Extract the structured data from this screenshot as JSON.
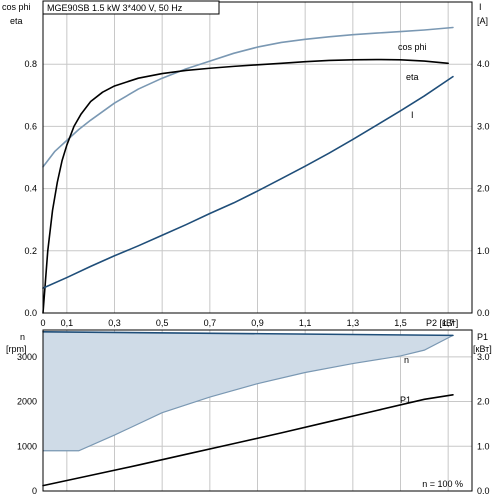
{
  "header": {
    "title": "MGE90SB   1.5 kW   3*400 V, 50 Hz"
  },
  "chart_data": [
    {
      "type": "line",
      "panel": "upper",
      "left_axis_labels": [
        "cos phi",
        "eta"
      ],
      "right_axis_labels": [
        "I",
        "[A]"
      ],
      "xlabel": "P2 [кВт]",
      "xlim": [
        0,
        1.8
      ],
      "ylim_left": [
        0,
        1.0
      ],
      "ylim_right": [
        0,
        5.0
      ],
      "x_ticks": [
        "0",
        "0,1",
        "0,3",
        "0,5",
        "0,7",
        "0,9",
        "1,1",
        "1,3",
        "1,5",
        "1,7"
      ],
      "x_tick_values": [
        0,
        0.1,
        0.3,
        0.5,
        0.7,
        0.9,
        1.1,
        1.3,
        1.5,
        1.7
      ],
      "y_left_ticks": [
        "0.0",
        "0.2",
        "0.4",
        "0.6",
        "0.8"
      ],
      "y_left_tick_values": [
        0,
        0.2,
        0.4,
        0.6,
        0.8
      ],
      "y_right_ticks": [
        "0.0",
        "1.0",
        "2.0",
        "3.0",
        "4.0"
      ],
      "y_right_tick_values": [
        0,
        1,
        2,
        3,
        4
      ],
      "grid": true,
      "series": [
        {
          "name": "cos phi",
          "axis": "left",
          "color": "#7a98b3",
          "x": [
            0,
            0.05,
            0.1,
            0.15,
            0.2,
            0.3,
            0.4,
            0.5,
            0.6,
            0.7,
            0.8,
            0.9,
            1.0,
            1.1,
            1.2,
            1.3,
            1.4,
            1.5,
            1.6,
            1.72
          ],
          "y": [
            0.47,
            0.52,
            0.555,
            0.59,
            0.62,
            0.675,
            0.72,
            0.755,
            0.785,
            0.81,
            0.835,
            0.855,
            0.87,
            0.88,
            0.888,
            0.895,
            0.9,
            0.905,
            0.91,
            0.918
          ]
        },
        {
          "name": "eta",
          "axis": "left",
          "color": "#000000",
          "x": [
            0,
            0.01,
            0.02,
            0.04,
            0.06,
            0.08,
            0.1,
            0.13,
            0.16,
            0.2,
            0.25,
            0.3,
            0.4,
            0.5,
            0.6,
            0.7,
            0.8,
            0.9,
            1.0,
            1.1,
            1.2,
            1.3,
            1.4,
            1.5,
            1.6,
            1.7
          ],
          "y": [
            0.0,
            0.1,
            0.2,
            0.33,
            0.42,
            0.49,
            0.54,
            0.6,
            0.64,
            0.68,
            0.71,
            0.73,
            0.755,
            0.77,
            0.78,
            0.787,
            0.793,
            0.798,
            0.803,
            0.808,
            0.812,
            0.814,
            0.815,
            0.814,
            0.81,
            0.803
          ]
        },
        {
          "name": "I",
          "axis": "right",
          "color": "#1f4e79",
          "x": [
            0,
            0.1,
            0.2,
            0.3,
            0.4,
            0.5,
            0.6,
            0.7,
            0.8,
            0.9,
            1.0,
            1.1,
            1.2,
            1.3,
            1.4,
            1.5,
            1.6,
            1.72
          ],
          "y": [
            0.4,
            0.57,
            0.75,
            0.92,
            1.08,
            1.25,
            1.42,
            1.6,
            1.77,
            1.96,
            2.16,
            2.36,
            2.57,
            2.79,
            3.02,
            3.25,
            3.49,
            3.8
          ]
        }
      ]
    },
    {
      "type": "area",
      "panel": "lower",
      "left_axis_labels": [
        "n",
        "[rpm]"
      ],
      "right_axis_labels": [
        "P1",
        "[кВт]"
      ],
      "xlim": [
        0,
        1.8
      ],
      "ylim_left": [
        0,
        3600
      ],
      "ylim_right": [
        0,
        3.6
      ],
      "y_left_ticks": [
        "0",
        "1000",
        "2000",
        "3000"
      ],
      "y_left_tick_values": [
        0,
        1000,
        2000,
        3000
      ],
      "y_right_ticks": [
        "0.0",
        "1.0",
        "2.0",
        "3.0"
      ],
      "y_right_tick_values": [
        0,
        1,
        2,
        3
      ],
      "grid": true,
      "annotation": "n = 100 %",
      "fill_color": "#cfdbe7",
      "fill_edge_color": "#7a98b3",
      "n_max": {
        "x": [
          0,
          1.72
        ],
        "y": [
          3560,
          3480
        ]
      },
      "n_min": {
        "x": [
          0,
          0.15,
          0.3,
          0.5,
          0.7,
          0.9,
          1.1,
          1.3,
          1.5,
          1.6,
          1.72
        ],
        "y": [
          900,
          900,
          1250,
          1750,
          2100,
          2400,
          2650,
          2850,
          3020,
          3150,
          3480
        ]
      },
      "series": [
        {
          "name": "n",
          "axis": "left",
          "color": "#1f4e79",
          "x": [
            0,
            1.72
          ],
          "y": [
            3560,
            3480
          ]
        },
        {
          "name": "P1",
          "axis": "right",
          "color": "#000000",
          "x": [
            0,
            0.2,
            0.4,
            0.6,
            0.8,
            1.0,
            1.2,
            1.4,
            1.6,
            1.72
          ],
          "y": [
            0.12,
            0.35,
            0.58,
            0.82,
            1.06,
            1.3,
            1.55,
            1.8,
            2.05,
            2.15
          ]
        }
      ]
    }
  ]
}
